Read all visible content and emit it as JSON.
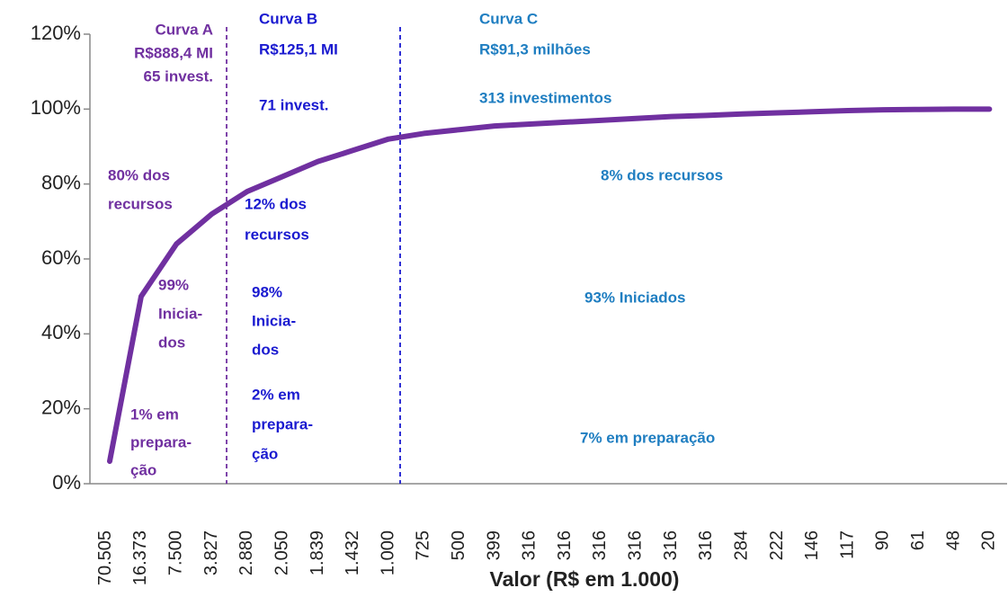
{
  "chart_data": {
    "type": "line",
    "x_label": "Valor (R$ em 1.000)",
    "categories": [
      "70.505",
      "16.373",
      "7.500",
      "3.827",
      "2.880",
      "2.050",
      "1.839",
      "1.432",
      "1.000",
      "725",
      "500",
      "399",
      "316",
      "316",
      "316",
      "316",
      "316",
      "316",
      "284",
      "222",
      "146",
      "117",
      "90",
      "61",
      "48",
      "20"
    ],
    "series": [
      {
        "color": "#7030a0",
        "values": [
          6,
          50,
          64,
          72,
          78,
          82,
          86,
          89,
          92,
          93.5,
          94.5,
          95.5,
          96,
          96.5,
          97,
          97.5,
          98,
          98.3,
          98.7,
          99,
          99.3,
          99.6,
          99.8,
          99.9,
          100,
          100
        ]
      }
    ],
    "ylim": [
      0,
      120
    ],
    "yticks": [
      {
        "value": 0,
        "label": "0%"
      },
      {
        "value": 20,
        "label": "20%"
      },
      {
        "value": 40,
        "label": "40%"
      },
      {
        "value": 60,
        "label": "60%"
      },
      {
        "value": 80,
        "label": "80%"
      },
      {
        "value": 100,
        "label": "100%"
      },
      {
        "value": 120,
        "label": "120%"
      }
    ],
    "annotations": [
      {
        "color": "#7030a0",
        "lines": [
          "Curva A",
          "R$888,4 MI",
          "65 invest."
        ]
      },
      {
        "color": "#7030a0",
        "lines": [
          "80% dos",
          "recursos"
        ]
      },
      {
        "color": "#7030a0",
        "lines": [
          "99%",
          "Inicia-",
          "dos"
        ]
      },
      {
        "color": "#7030a0",
        "lines": [
          "1% em",
          "prepara-",
          "ção"
        ]
      },
      {
        "color": "#1a1ad0",
        "lines": [
          "Curva B",
          "R$125,1 MI"
        ]
      },
      {
        "color": "#1a1ad0",
        "lines": [
          "71 invest."
        ]
      },
      {
        "color": "#1a1ad0",
        "lines": [
          "12% dos",
          "recursos"
        ]
      },
      {
        "color": "#1a1ad0",
        "lines": [
          "98%",
          "Inicia-",
          "dos"
        ]
      },
      {
        "color": "#1a1ad0",
        "lines": [
          "2%  em",
          "prepara-",
          "ção"
        ]
      },
      {
        "color": "#1f7ec1",
        "lines": [
          "Curva C",
          "R$91,3 milhões"
        ]
      },
      {
        "color": "#1f7ec1",
        "lines": [
          "313 investimentos"
        ]
      },
      {
        "color": "#1f7ec1",
        "lines": [
          "8% dos recursos"
        ]
      },
      {
        "color": "#1f7ec1",
        "lines": [
          "93% Iniciados"
        ]
      },
      {
        "color": "#1f7ec1",
        "lines": [
          "7% em preparação"
        ]
      }
    ]
  }
}
